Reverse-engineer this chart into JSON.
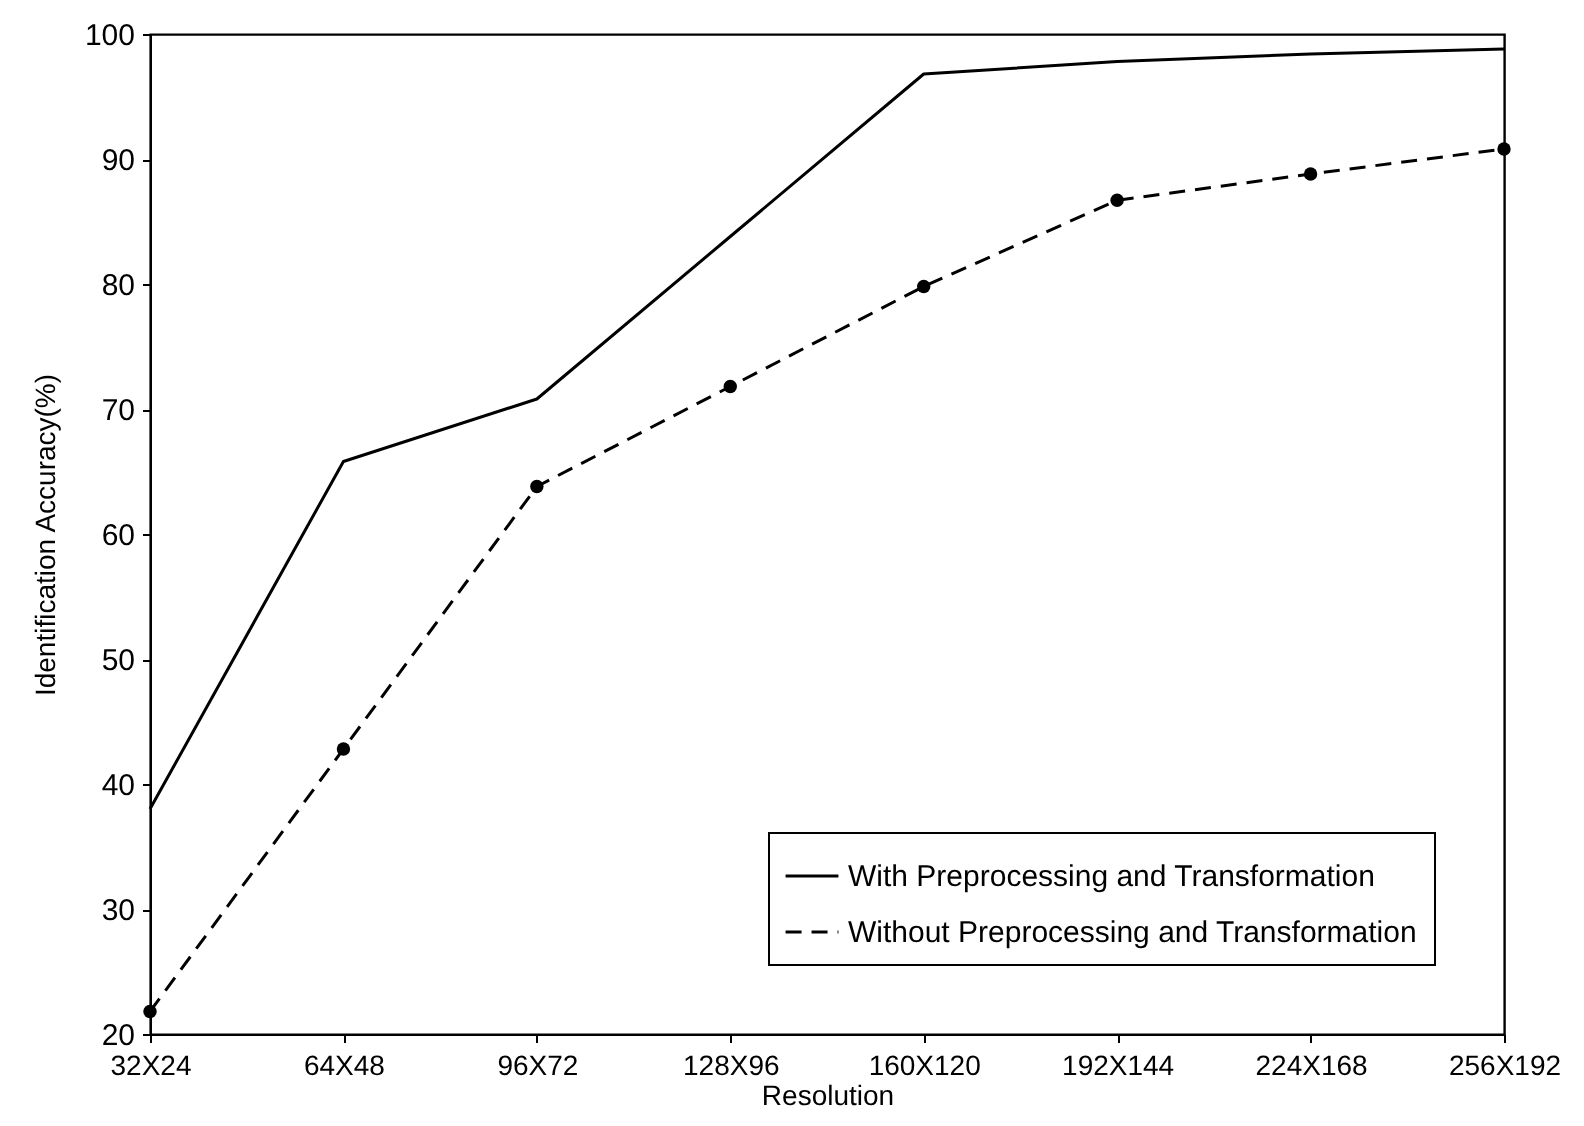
{
  "chart_data": {
    "type": "line",
    "xlabel": "Resolution",
    "ylabel": "Identification Accuracy(%)",
    "categories": [
      "32X24",
      "64X48",
      "96X72",
      "128X96",
      "160X120",
      "192X144",
      "224X168",
      "256X192"
    ],
    "ylim": [
      20,
      100
    ],
    "yticks": [
      20,
      30,
      40,
      50,
      60,
      70,
      80,
      90,
      100
    ],
    "legend": "bottom right",
    "series": [
      {
        "name": "With Preprocessing and Transformation",
        "color": "#000000",
        "line_style": "solid",
        "marker": "none",
        "values": [
          38,
          65.8,
          70.8,
          83.8,
          96.8,
          97.8,
          98.4,
          98.8
        ]
      },
      {
        "name": "Without Preprocessing and Transformation",
        "color": "#000000",
        "line_style": "dashed",
        "marker": "circle",
        "values": [
          21.8,
          42.8,
          63.8,
          71.8,
          79.8,
          86.7,
          88.8,
          90.8
        ]
      }
    ]
  }
}
